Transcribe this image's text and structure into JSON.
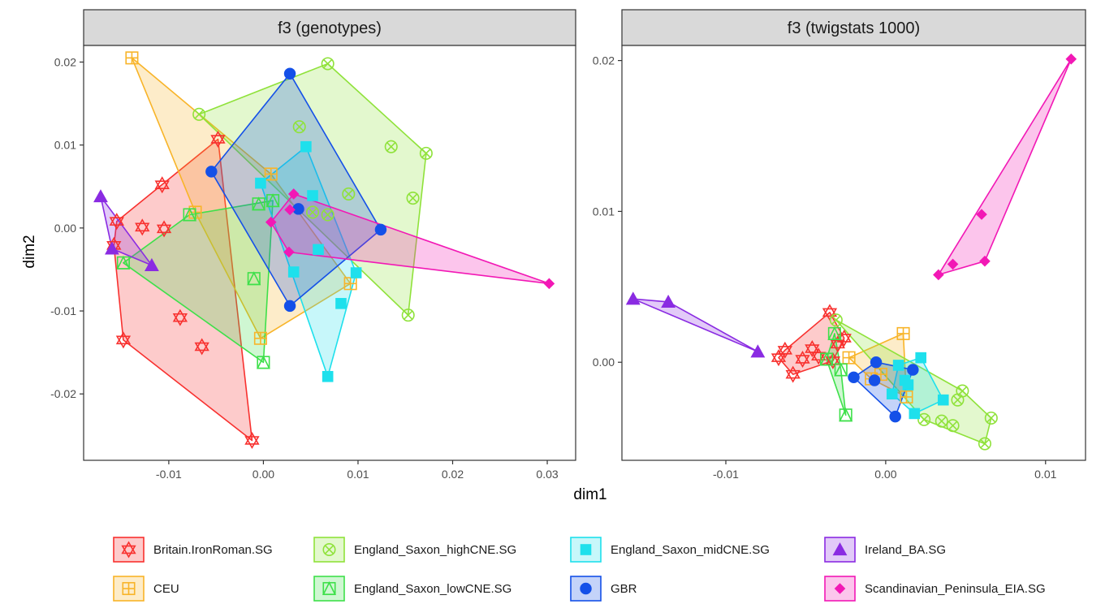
{
  "figure": {
    "xlabel": "dim1",
    "ylabel": "dim2"
  },
  "legend": {
    "position": "bottom",
    "items": [
      {
        "label": "Britain.IronRoman.SG",
        "color": "#f8312f",
        "shape": "star-of-david"
      },
      {
        "label": "CEU",
        "color": "#f8b429",
        "shape": "square-plus"
      },
      {
        "label": "England_Saxon_highCNE.SG",
        "color": "#8fe23a",
        "shape": "circle-x"
      },
      {
        "label": "England_Saxon_lowCNE.SG",
        "color": "#3ee04a",
        "shape": "square-triangle"
      },
      {
        "label": "England_Saxon_midCNE.SG",
        "color": "#1ee0ec",
        "shape": "filled-square"
      },
      {
        "label": "GBR",
        "color": "#1450e8",
        "shape": "filled-circle"
      },
      {
        "label": "Ireland_BA.SG",
        "color": "#8a2be2",
        "shape": "filled-triangle"
      },
      {
        "label": "Scandinavian_Peninsula_EIA.SG",
        "color": "#f218b5",
        "shape": "filled-diamond"
      }
    ]
  },
  "chart_data": [
    {
      "type": "scatter",
      "title": "f3 (genotypes)",
      "xlabel": "dim1",
      "ylabel": "dim2",
      "xlim": [
        -0.019,
        0.033
      ],
      "ylim": [
        -0.028,
        0.022
      ],
      "xticks": [
        -0.01,
        0.0,
        0.01,
        0.02,
        0.03
      ],
      "xtick_labels": [
        "-0.01",
        "0.00",
        "0.01",
        "0.02",
        "0.03"
      ],
      "yticks": [
        -0.02,
        -0.01,
        0.0,
        0.01,
        0.02
      ],
      "ytick_labels": [
        "-0.02",
        "-0.01",
        "0.00",
        "0.01",
        "0.02"
      ],
      "grid": false,
      "series": [
        {
          "name": "Britain.IronRoman.SG",
          "points": [
            [
              -0.0155,
              0.0008
            ],
            [
              -0.0158,
              -0.0021
            ],
            [
              -0.0148,
              -0.0135
            ],
            [
              -0.0128,
              0.0001
            ],
            [
              -0.0105,
              -0.0001
            ],
            [
              -0.0107,
              0.0052
            ],
            [
              -0.0088,
              -0.0108
            ],
            [
              -0.0065,
              -0.0143
            ],
            [
              -0.0048,
              0.0107
            ],
            [
              -0.0012,
              -0.0256
            ]
          ]
        },
        {
          "name": "CEU",
          "points": [
            [
              -0.0139,
              0.0205
            ],
            [
              -0.0072,
              0.0019
            ],
            [
              -0.0003,
              -0.0133
            ],
            [
              0.0008,
              0.0065
            ],
            [
              0.0092,
              -0.0067
            ]
          ]
        },
        {
          "name": "England_Saxon_highCNE.SG",
          "points": [
            [
              -0.0068,
              0.0137
            ],
            [
              0.0068,
              0.0198
            ],
            [
              0.0038,
              0.0122
            ],
            [
              0.0052,
              0.0019
            ],
            [
              0.0068,
              0.0016
            ],
            [
              0.009,
              0.0041
            ],
            [
              0.0135,
              0.0098
            ],
            [
              0.0172,
              0.009
            ],
            [
              0.0158,
              0.0036
            ],
            [
              0.0153,
              -0.0105
            ]
          ]
        },
        {
          "name": "England_Saxon_lowCNE.SG",
          "points": [
            [
              -0.0148,
              -0.0042
            ],
            [
              -0.0078,
              0.0016
            ],
            [
              -0.0005,
              0.0029
            ],
            [
              -0.001,
              -0.0061
            ],
            [
              0.0,
              -0.0162
            ],
            [
              0.001,
              0.0033
            ]
          ]
        },
        {
          "name": "England_Saxon_midCNE.SG",
          "points": [
            [
              -0.0003,
              0.0054
            ],
            [
              0.0045,
              0.0098
            ],
            [
              0.0052,
              0.0039
            ],
            [
              0.0058,
              -0.0026
            ],
            [
              0.0032,
              -0.0053
            ],
            [
              0.0068,
              -0.0179
            ],
            [
              0.0082,
              -0.0091
            ],
            [
              0.0098,
              -0.0054
            ]
          ]
        },
        {
          "name": "GBR",
          "points": [
            [
              -0.0055,
              0.0068
            ],
            [
              0.0028,
              0.0186
            ],
            [
              0.0124,
              -0.0002
            ],
            [
              0.0028,
              -0.0094
            ],
            [
              0.0037,
              0.0023
            ]
          ]
        },
        {
          "name": "Ireland_BA.SG",
          "points": [
            [
              -0.0172,
              0.0038
            ],
            [
              -0.016,
              -0.0025
            ],
            [
              -0.0118,
              -0.0045
            ]
          ]
        },
        {
          "name": "Scandinavian_Peninsula_EIA.SG",
          "points": [
            [
              0.0008,
              0.0007
            ],
            [
              0.0028,
              0.0022
            ],
            [
              0.0032,
              0.0041
            ],
            [
              0.0302,
              -0.0067
            ],
            [
              0.0027,
              -0.0029
            ]
          ]
        }
      ]
    },
    {
      "type": "scatter",
      "title": "f3 (twigstats 1000)",
      "xlabel": "dim1",
      "ylabel": "dim2",
      "xlim": [
        -0.0165,
        0.0125
      ],
      "ylim": [
        -0.0065,
        0.021
      ],
      "xticks": [
        -0.01,
        0.0,
        0.01
      ],
      "xtick_labels": [
        "-0.01",
        "0.00",
        "0.01"
      ],
      "yticks": [
        0.0,
        0.01,
        0.02
      ],
      "ytick_labels": [
        "0.00",
        "0.01",
        "0.02"
      ],
      "grid": false,
      "series": [
        {
          "name": "Britain.IronRoman.SG",
          "points": [
            [
              -0.0067,
              0.0003
            ],
            [
              -0.0063,
              0.0008
            ],
            [
              -0.0058,
              -0.0008
            ],
            [
              -0.0052,
              0.0002
            ],
            [
              -0.0046,
              0.0009
            ],
            [
              -0.0042,
              0.0004
            ],
            [
              -0.0035,
              0.0033
            ],
            [
              -0.003,
              0.0012
            ],
            [
              -0.0033,
              0.0001
            ],
            [
              -0.0026,
              0.0016
            ]
          ]
        },
        {
          "name": "CEU",
          "points": [
            [
              -0.0023,
              0.0003
            ],
            [
              -0.0009,
              -0.0011
            ],
            [
              -0.0003,
              -0.0008
            ],
            [
              0.0011,
              0.0019
            ],
            [
              0.0013,
              -0.0023
            ]
          ]
        },
        {
          "name": "England_Saxon_highCNE.SG",
          "points": [
            [
              -0.0031,
              0.0028
            ],
            [
              0.0024,
              -0.0038
            ],
            [
              0.0035,
              -0.0039
            ],
            [
              0.0045,
              -0.0025
            ],
            [
              0.0048,
              -0.0019
            ],
            [
              0.0062,
              -0.0054
            ],
            [
              0.0066,
              -0.0037
            ],
            [
              0.0042,
              -0.0042
            ]
          ]
        },
        {
          "name": "England_Saxon_lowCNE.SG",
          "points": [
            [
              -0.0037,
              0.0002
            ],
            [
              -0.0032,
              0.0019
            ],
            [
              -0.0025,
              -0.0035
            ],
            [
              -0.0028,
              -0.0005
            ]
          ]
        },
        {
          "name": "England_Saxon_midCNE.SG",
          "points": [
            [
              0.0004,
              -0.0021
            ],
            [
              0.0008,
              -0.0002
            ],
            [
              0.0014,
              -0.0015
            ],
            [
              0.0018,
              -0.0034
            ],
            [
              0.0022,
              0.0003
            ],
            [
              0.0036,
              -0.0025
            ],
            [
              0.0012,
              -0.0012
            ]
          ]
        },
        {
          "name": "GBR",
          "points": [
            [
              -0.002,
              -0.001
            ],
            [
              -0.0006,
              0.0
            ],
            [
              -0.0007,
              -0.0012
            ],
            [
              0.0006,
              -0.0036
            ],
            [
              0.0017,
              -0.0005
            ]
          ]
        },
        {
          "name": "Ireland_BA.SG",
          "points": [
            [
              -0.0158,
              0.0042
            ],
            [
              -0.0136,
              0.004
            ],
            [
              -0.008,
              0.0007
            ]
          ]
        },
        {
          "name": "Scandinavian_Peninsula_EIA.SG",
          "points": [
            [
              0.0033,
              0.0058
            ],
            [
              0.0042,
              0.0065
            ],
            [
              0.006,
              0.0098
            ],
            [
              0.0062,
              0.0067
            ],
            [
              0.0116,
              0.0201
            ]
          ]
        }
      ]
    }
  ]
}
